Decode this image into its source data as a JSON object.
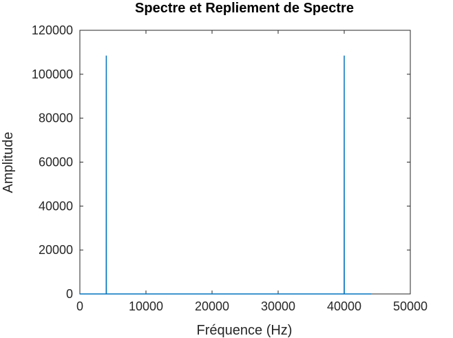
{
  "chart_data": {
    "type": "line",
    "title": "Spectre et Repliement de Spectre",
    "xlabel": "Fréquence (Hz)",
    "ylabel": "Amplitude",
    "xlim": [
      0,
      50000
    ],
    "ylim": [
      0,
      120000
    ],
    "xticks": [
      0,
      10000,
      20000,
      30000,
      40000,
      50000
    ],
    "yticks": [
      0,
      20000,
      40000,
      60000,
      80000,
      100000,
      120000
    ],
    "grid": false,
    "line_color": "#0072bd",
    "series": [
      {
        "x": [
          0,
          3990,
          4000,
          4010,
          39990,
          40000,
          40010,
          44100
        ],
        "y": [
          0,
          0,
          108500,
          0,
          0,
          108500,
          0,
          0
        ]
      }
    ]
  }
}
